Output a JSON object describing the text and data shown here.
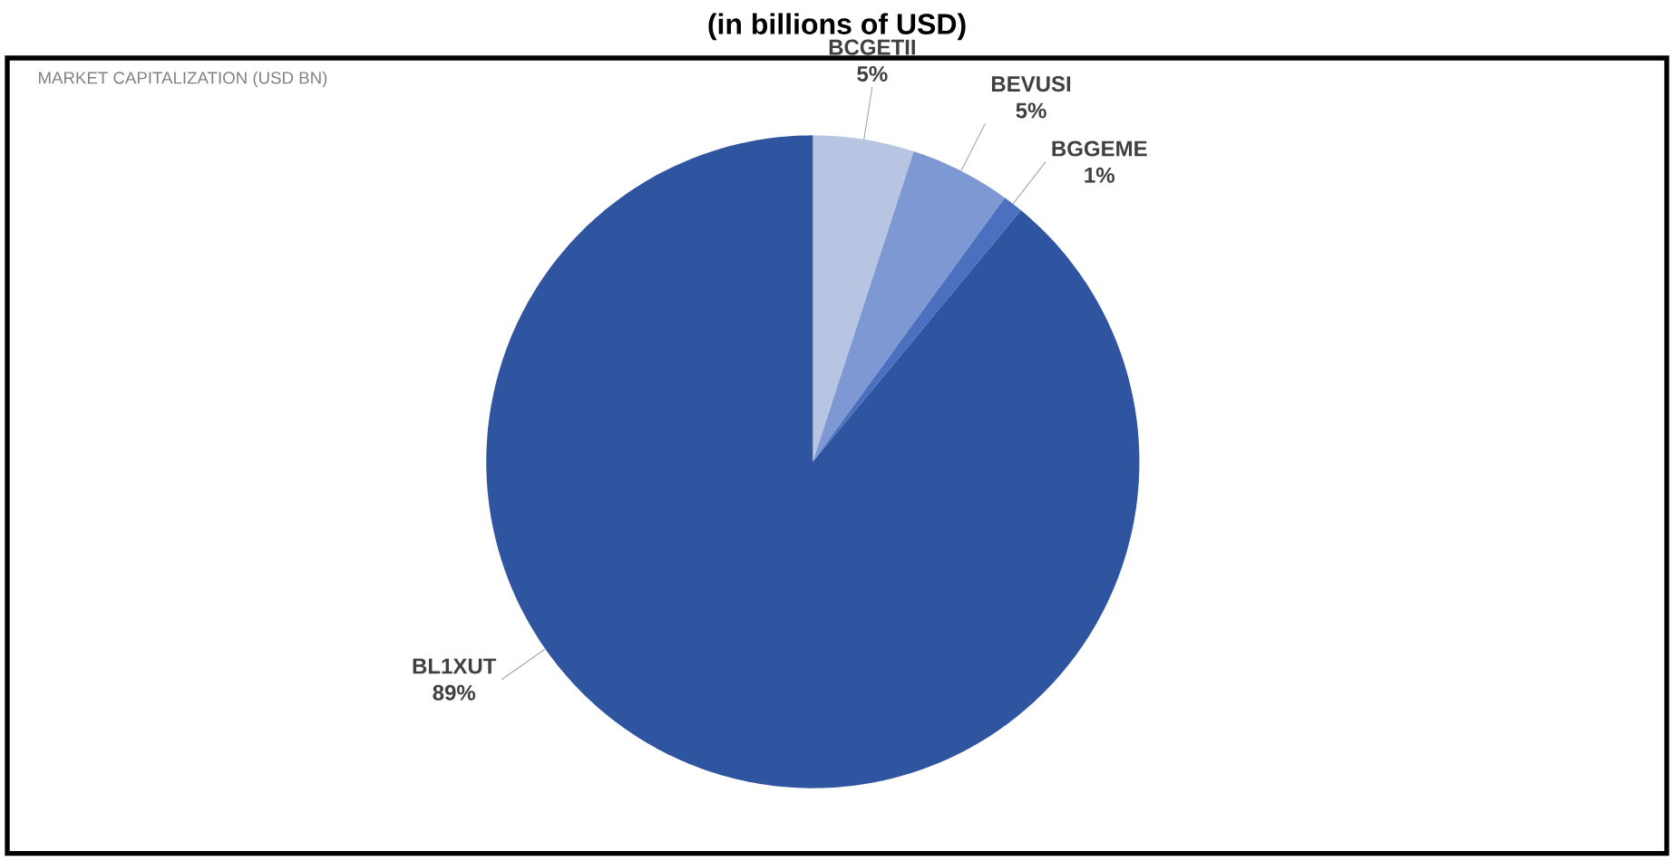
{
  "chart_data": {
    "type": "pie",
    "title": "(in billions of USD)",
    "subtitle": "MARKET CAPITALIZATION (USD BN)",
    "categories": [
      "BCGETII",
      "BEVUSI",
      "BGGEME",
      "BL1XUT"
    ],
    "values": [
      5,
      5,
      1,
      89
    ],
    "value_labels": [
      "5%",
      "5%",
      "1%",
      "89%"
    ],
    "colors": [
      "#b7c5e2",
      "#7d98d3",
      "#4b70c0",
      "#2f54a0"
    ]
  }
}
